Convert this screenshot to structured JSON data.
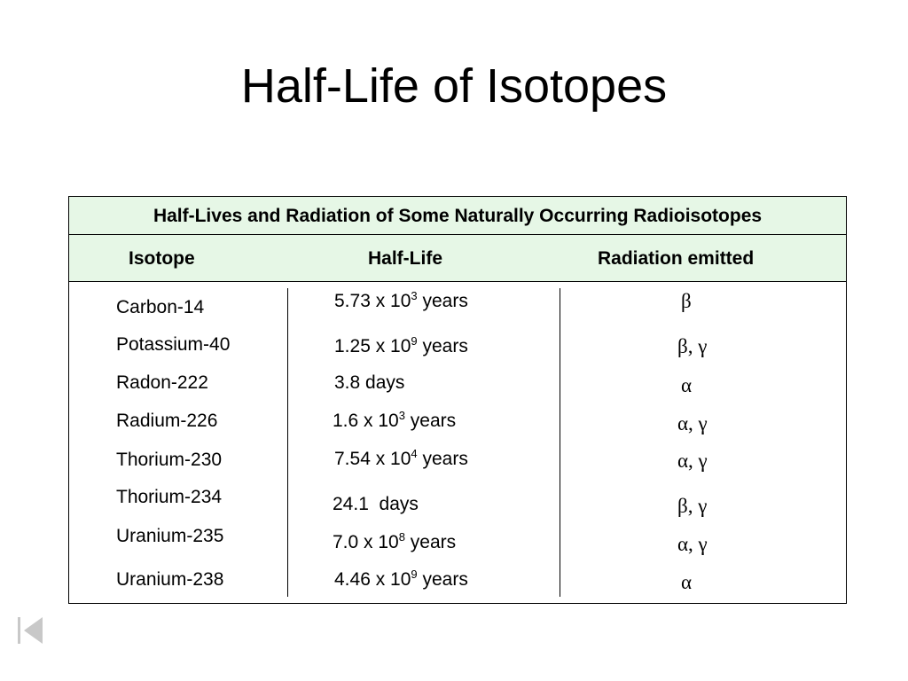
{
  "title": "Half-Life of Isotopes",
  "table": {
    "caption": "Half-Lives and Radiation of Some Naturally Occurring Radioisotopes",
    "headers": {
      "isotope": "Isotope",
      "half_life": "Half-Life",
      "radiation": "Radiation emitted"
    },
    "rows": [
      {
        "isotope": "Carbon-14",
        "hl_base": "5.73 x 10",
        "hl_exp": "3",
        "hl_unit": " years",
        "radiation": "β"
      },
      {
        "isotope": "Potassium-40",
        "hl_base": "1.25 x 10",
        "hl_exp": "9",
        "hl_unit": " years",
        "radiation": "β, γ"
      },
      {
        "isotope": "Radon-222",
        "hl_base": "3.8 days",
        "hl_exp": "",
        "hl_unit": "",
        "radiation": "α"
      },
      {
        "isotope": "Radium-226",
        "hl_base": "1.6 x 10",
        "hl_exp": "3",
        "hl_unit": " years",
        "radiation": "α, γ"
      },
      {
        "isotope": "Thorium-230",
        "hl_base": "7.54 x 10",
        "hl_exp": "4",
        "hl_unit": " years",
        "radiation": "α, γ"
      },
      {
        "isotope": "Thorium-234",
        "hl_base": "24.1  days",
        "hl_exp": "",
        "hl_unit": "",
        "radiation": "β, γ"
      },
      {
        "isotope": "Uranium-235",
        "hl_base": "7.0 x 10",
        "hl_exp": "8",
        "hl_unit": " years",
        "radiation": "α, γ"
      },
      {
        "isotope": "Uranium-238",
        "hl_base": "4.46 x 10",
        "hl_exp": "9",
        "hl_unit": " years",
        "radiation": "α"
      }
    ]
  },
  "colors": {
    "header_bg": "#e6f7e6",
    "nav_icon": "#c8c8c8"
  },
  "icons": {
    "nav": "first-slide-icon"
  }
}
